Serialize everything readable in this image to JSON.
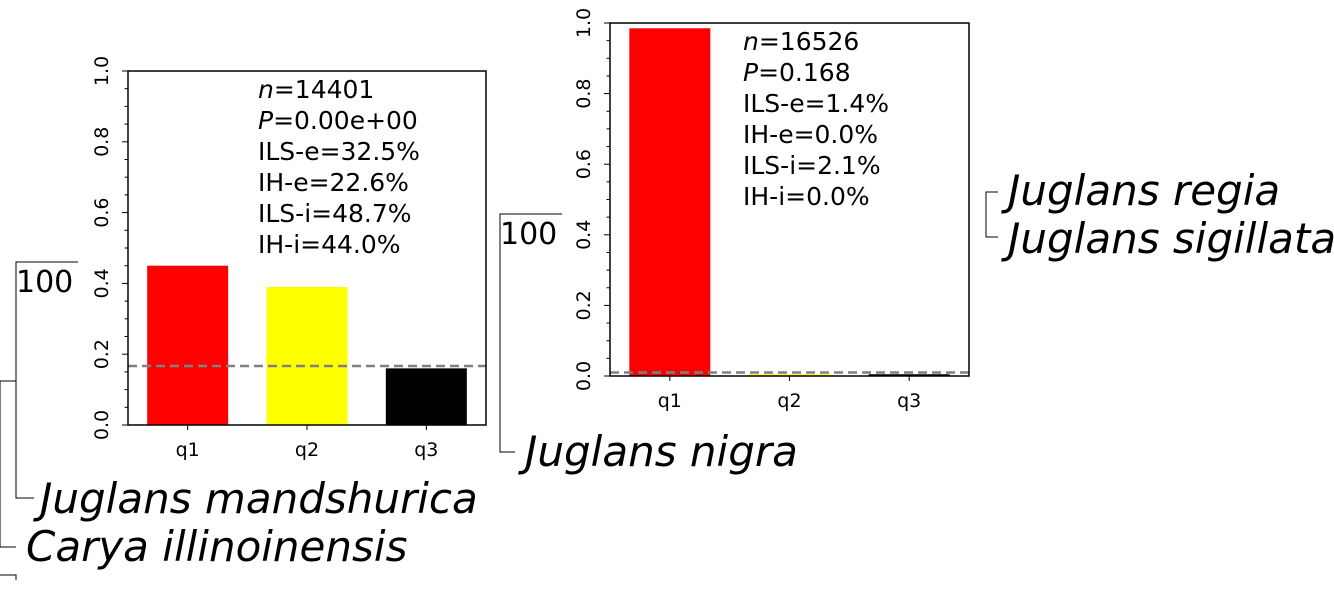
{
  "chart_data": [
    {
      "type": "bar",
      "categories": [
        "q1",
        "q2",
        "q3"
      ],
      "values": [
        0.45,
        0.39,
        0.16
      ],
      "colors": [
        "#ff0000",
        "#ffff00",
        "#000000"
      ],
      "ylim": [
        0,
        1.0
      ],
      "yticks": [
        "0.0",
        "0.2",
        "0.4",
        "0.6",
        "0.8",
        "1.0"
      ],
      "reference_line": 0.1667,
      "reference_color": "#808080",
      "stats": [
        "n=14401",
        "P=0.00e+00",
        "ILS-e=32.5%",
        "IH-e=22.6%",
        "ILS-i=48.7%",
        "IH-i=44.0%"
      ]
    },
    {
      "type": "bar",
      "categories": [
        "q1",
        "q2",
        "q3"
      ],
      "values": [
        0.985,
        0.005,
        0.005
      ],
      "colors": [
        "#ff0000",
        "#ffff00",
        "#000000"
      ],
      "ylim": [
        0,
        1.0
      ],
      "yticks": [
        "0.0",
        "0.2",
        "0.4",
        "0.6",
        "0.8",
        "1.0"
      ],
      "reference_line": 0.01,
      "reference_color": "#808080",
      "stats": [
        "n=16526",
        "P=0.168",
        "ILS-e=1.4%",
        "IH-e=0.0%",
        "ILS-i=2.1%",
        "IH-i=0.0%"
      ]
    }
  ],
  "tree": {
    "support_left": "100",
    "support_mid": "100",
    "taxa": {
      "mandshurica": "Juglans mandshurica",
      "illinoinensis": "Carya illinoinensis",
      "nigra": "Juglans nigra",
      "regia": "Juglans regia",
      "sigillata": "Juglans sigillata"
    }
  }
}
